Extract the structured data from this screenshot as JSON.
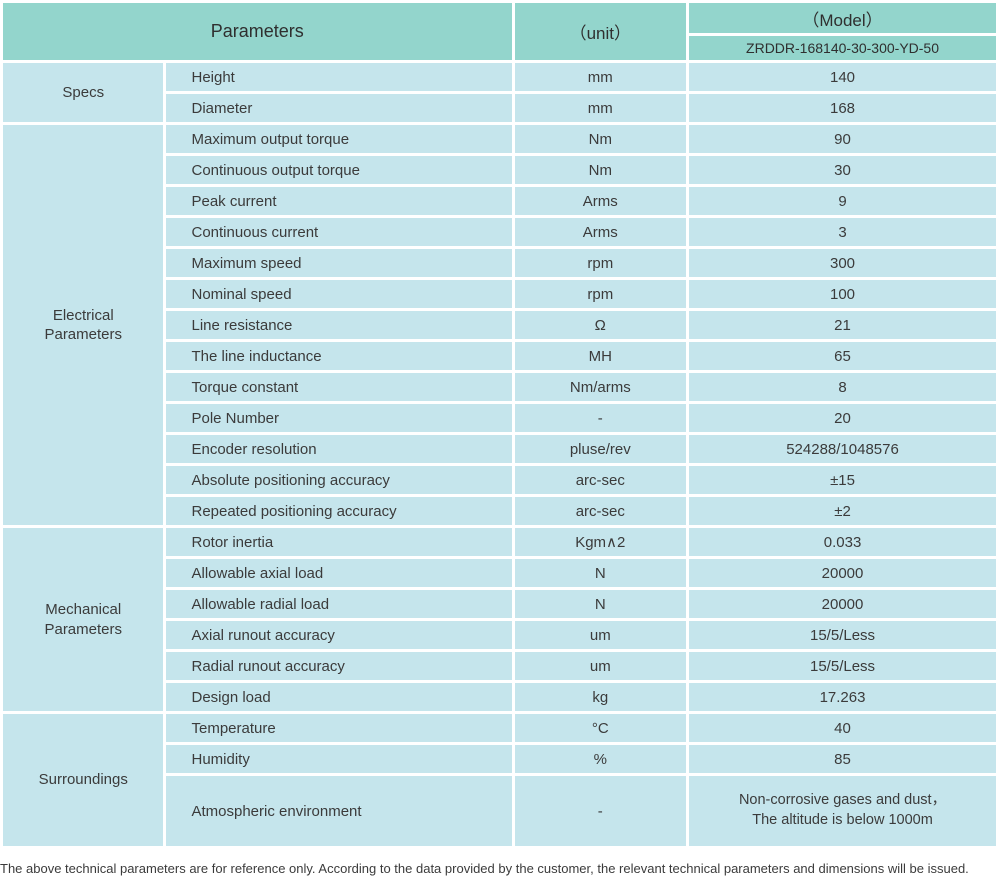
{
  "colors": {
    "header_bg": "#93d5cc",
    "row_bg": "#c5e5ec",
    "text": "#3b3b3b"
  },
  "header": {
    "parameters_label": "Parameters",
    "unit_label": "（unit）",
    "model_label": "（Model）",
    "model_value": "ZRDDR-168140-30-300-YD-50"
  },
  "groups": [
    {
      "name": "Specs",
      "rows": [
        {
          "param": "Height",
          "unit": "mm",
          "value": "140"
        },
        {
          "param": "Diameter",
          "unit": "mm",
          "value": "168"
        }
      ]
    },
    {
      "name": "Electrical Parameters",
      "rows": [
        {
          "param": "Maximum output torque",
          "unit": "Nm",
          "value": "90"
        },
        {
          "param": "Continuous output torque",
          "unit": "Nm",
          "value": "30"
        },
        {
          "param": "Peak current",
          "unit": "Arms",
          "value": "9"
        },
        {
          "param": "Continuous current",
          "unit": "Arms",
          "value": "3"
        },
        {
          "param": "Maximum speed",
          "unit": "rpm",
          "value": "300"
        },
        {
          "param": "Nominal speed",
          "unit": "rpm",
          "value": "100"
        },
        {
          "param": "Line resistance",
          "unit": "Ω",
          "value": "21"
        },
        {
          "param": "The line inductance",
          "unit": "MH",
          "value": "65"
        },
        {
          "param": "Torque constant",
          "unit": "Nm/arms",
          "value": "8"
        },
        {
          "param": "Pole Number",
          "unit": "-",
          "value": "20"
        },
        {
          "param": "Encoder resolution",
          "unit": "pluse/rev",
          "value": "524288/1048576"
        },
        {
          "param": "Absolute positioning accuracy",
          "unit": "arc-sec",
          "value": "±15"
        },
        {
          "param": "Repeated positioning accuracy",
          "unit": "arc-sec",
          "value": "±2"
        }
      ]
    },
    {
      "name": "Mechanical Parameters",
      "rows": [
        {
          "param": "Rotor inertia",
          "unit": "Kgm∧2",
          "value": "0.033"
        },
        {
          "param": "Allowable axial load",
          "unit": "N",
          "value": "20000"
        },
        {
          "param": "Allowable radial load",
          "unit": "N",
          "value": "20000"
        },
        {
          "param": "Axial runout accuracy",
          "unit": "um",
          "value": "15/5/Less"
        },
        {
          "param": "Radial runout accuracy",
          "unit": "um",
          "value": "15/5/Less"
        },
        {
          "param": "Design load",
          "unit": "kg",
          "value": "17.263"
        }
      ]
    },
    {
      "name": "Surroundings",
      "rows": [
        {
          "param": "Temperature",
          "unit": "°C",
          "value": "40"
        },
        {
          "param": "Humidity",
          "unit": "%",
          "value": "85"
        },
        {
          "param": "Atmospheric environment",
          "unit": "-",
          "value": "Non-corrosive gases and dust，",
          "value_line2": "The altitude is below 1000m"
        }
      ]
    }
  ],
  "footer": {
    "note": "The above technical parameters are for reference only. According to the data provided by the customer, the relevant technical parameters and dimensions will be issued."
  }
}
